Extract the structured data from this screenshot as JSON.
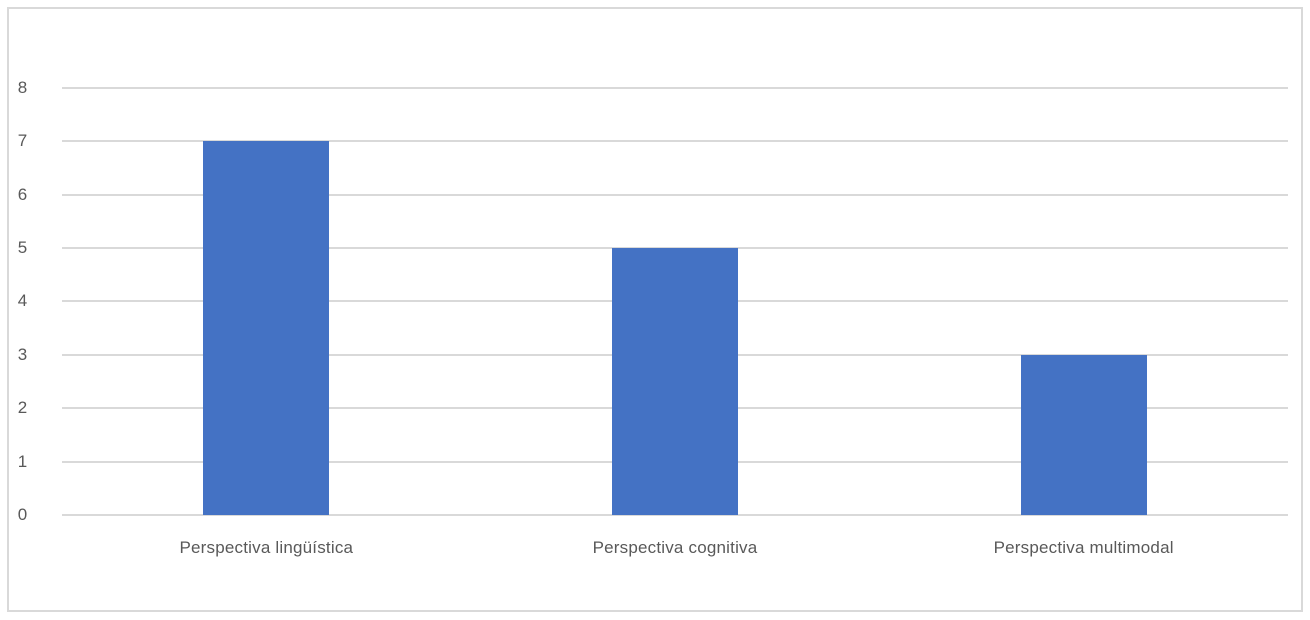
{
  "chart_data": {
    "type": "bar",
    "categories": [
      "Perspectiva lingüística",
      "Perspectiva cognitiva",
      "Perspectiva multimodal"
    ],
    "values": [
      7,
      5,
      3
    ],
    "title": "",
    "xlabel": "",
    "ylabel": "",
    "ylim": [
      0,
      8
    ],
    "ytick_interval": 1,
    "ytick_labels": [
      "0",
      "1",
      "2",
      "3",
      "4",
      "5",
      "6",
      "7",
      "8"
    ],
    "grid": true,
    "legend": false,
    "colors": {
      "bar": "#4472C4",
      "gridline": "#D9D9D9",
      "axis_text": "#595959",
      "frame_border": "#D9D9D9",
      "background": "#FFFFFF"
    }
  }
}
